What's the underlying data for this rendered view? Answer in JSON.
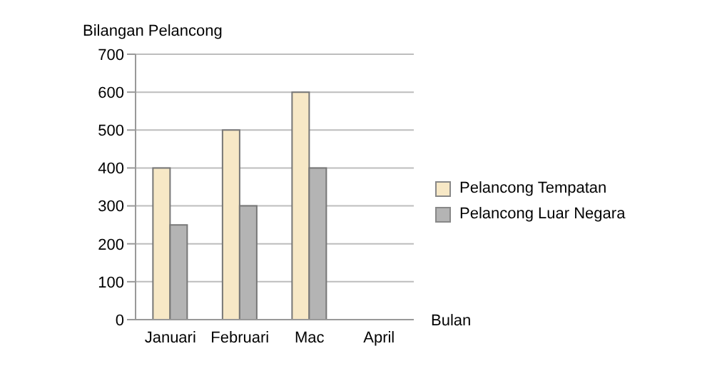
{
  "chart_data": {
    "type": "bar",
    "ylabel": "Bilangan Pelancong",
    "xlabel": "Bulan",
    "categories": [
      "Januari",
      "Februari",
      "Mac",
      "April"
    ],
    "series": [
      {
        "name": "Pelancong Tempatan",
        "color": "#f7e8c6",
        "values": [
          400,
          500,
          600,
          null
        ]
      },
      {
        "name": "Pelancong Luar Negara",
        "color": "#b4b4b4",
        "values": [
          250,
          300,
          400,
          null
        ]
      }
    ],
    "ylim": [
      0,
      700
    ],
    "yticks": [
      0,
      100,
      200,
      300,
      400,
      500,
      600,
      700
    ],
    "grid": "y",
    "legend": "right"
  }
}
